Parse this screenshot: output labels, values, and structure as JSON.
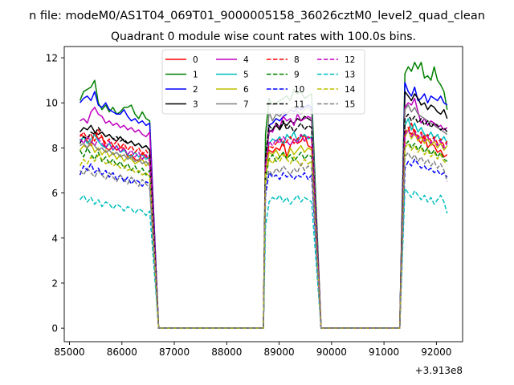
{
  "figure": {
    "suptitle": "n file: modeM0/AS1T04_069T01_9000005158_36026cztM0_level2_quad_clean",
    "title": "Quadrant 0 module wise count rates with 100.0s bins.",
    "x_offset_label": "+3.913e8"
  },
  "chart_data": {
    "type": "line",
    "title": "Quadrant 0 module wise count rates with 100.0s bins.",
    "xlabel": "",
    "ylabel": "",
    "xlim": [
      84900,
      92500
    ],
    "ylim": [
      -0.6,
      12.5
    ],
    "x_offset": 391300000,
    "xticks": [
      85000,
      86000,
      87000,
      88000,
      89000,
      90000,
      91000,
      92000
    ],
    "yticks": [
      0,
      2,
      4,
      6,
      8,
      10,
      12
    ],
    "grid": false,
    "legend": {
      "location": "upper center",
      "columns": 4
    },
    "series": [
      {
        "name": "0",
        "color": "#ff0000",
        "dash": "solid",
        "seg1": [
          8.6,
          8.5,
          8.3,
          8.1,
          8.7,
          8.4,
          8.5,
          8.0,
          7.9,
          8.1,
          7.9,
          8.0,
          8.0,
          7.6,
          7.7,
          7.5,
          7.4,
          7.8,
          7.6,
          7.5
        ],
        "seg2": [
          7.2,
          7.9,
          7.8,
          8.0,
          7.9,
          8.3,
          7.6,
          8.1,
          8.4,
          8.2,
          8.3,
          8.6,
          8.1,
          8.0
        ],
        "seg3": [
          8.5,
          8.8,
          9.1,
          8.6,
          8.4,
          8.2,
          8.6,
          8.0,
          8.2,
          8.1,
          7.8,
          7.9,
          7.6,
          7.7
        ]
      },
      {
        "name": "1",
        "color": "#008000",
        "dash": "solid",
        "seg1": [
          10.1,
          10.5,
          10.6,
          10.7,
          11.0,
          10.0,
          9.7,
          9.9,
          9.6,
          9.8,
          9.5,
          9.6,
          9.8,
          9.8,
          9.9,
          9.5,
          9.3,
          9.6,
          9.3,
          9.2
        ],
        "seg2": [
          8.6,
          10.2,
          9.9,
          10.0,
          10.1,
          10.2,
          10.3,
          10.1,
          10.6,
          10.4,
          10.5,
          10.2,
          10.3,
          10.4
        ],
        "seg3": [
          11.3,
          11.6,
          11.4,
          11.8,
          11.5,
          11.8,
          11.1,
          11.2,
          11.0,
          11.6,
          11.0,
          10.8,
          10.5,
          9.7
        ]
      },
      {
        "name": "2",
        "color": "#0000ff",
        "dash": "solid",
        "seg1": [
          10.0,
          10.2,
          10.3,
          10.1,
          10.5,
          9.9,
          9.8,
          10.0,
          9.7,
          9.6,
          9.5,
          9.5,
          9.7,
          9.4,
          9.2,
          9.3,
          9.1,
          9.2,
          9.0,
          9.1
        ],
        "seg2": [
          7.5,
          9.0,
          9.1,
          9.3,
          9.2,
          9.4,
          9.5,
          9.7,
          9.6,
          9.8,
          9.7,
          9.8,
          9.9,
          9.8
        ],
        "seg3": [
          10.9,
          10.5,
          10.3,
          10.7,
          10.1,
          10.2,
          10.4,
          10.0,
          10.3,
          10.2,
          10.1,
          10.3,
          10.0,
          9.9
        ]
      },
      {
        "name": "3",
        "color": "#000000",
        "dash": "solid",
        "seg1": [
          8.7,
          8.9,
          8.8,
          9.0,
          8.7,
          8.6,
          8.7,
          8.5,
          8.6,
          8.4,
          8.3,
          8.5,
          8.3,
          8.2,
          8.3,
          8.1,
          8.2,
          8.0,
          8.1,
          7.9
        ],
        "seg2": [
          7.4,
          8.7,
          8.8,
          9.0,
          8.8,
          9.1,
          9.0,
          9.2,
          9.1,
          9.3,
          9.2,
          9.4,
          9.3,
          9.2
        ],
        "seg3": [
          10.5,
          10.3,
          10.1,
          10.4,
          10.2,
          9.9,
          10.0,
          9.7,
          9.9,
          9.8,
          9.6,
          9.5,
          9.7,
          9.3
        ]
      },
      {
        "name": "4",
        "color": "#bf00bf",
        "dash": "solid",
        "seg1": [
          9.2,
          9.3,
          9.1,
          9.6,
          9.8,
          9.5,
          9.4,
          9.1,
          9.2,
          9.0,
          9.1,
          8.9,
          9.0,
          8.8,
          8.9,
          8.7,
          8.8,
          8.6,
          8.5,
          8.7
        ],
        "seg2": [
          7.3,
          8.8,
          8.7,
          9.1,
          8.9,
          9.4,
          9.2,
          9.3,
          9.0,
          9.5,
          9.2,
          9.3,
          9.4,
          9.3
        ],
        "seg3": [
          9.8,
          10.0,
          9.9,
          10.2,
          9.6,
          9.1,
          9.3,
          9.0,
          9.2,
          9.1,
          8.9,
          9.0,
          8.8,
          8.9
        ]
      },
      {
        "name": "5",
        "color": "#00bfbf",
        "dash": "solid",
        "seg1": [
          8.3,
          8.5,
          8.2,
          8.4,
          8.6,
          8.3,
          8.1,
          8.0,
          8.2,
          7.9,
          8.1,
          7.8,
          7.9,
          7.7,
          7.6,
          7.8,
          7.6,
          7.7,
          7.5,
          7.6
        ],
        "seg2": [
          7.1,
          8.2,
          8.4,
          8.3,
          8.5,
          8.1,
          8.6,
          8.4,
          8.7,
          8.3,
          8.5,
          8.6,
          8.4,
          8.5
        ],
        "seg3": [
          9.0,
          9.3,
          8.8,
          9.1,
          8.7,
          8.9,
          8.6,
          8.5,
          8.7,
          8.4,
          8.6,
          8.3,
          8.5,
          8.2
        ]
      },
      {
        "name": "6",
        "color": "#bfbf00",
        "dash": "solid",
        "seg1": [
          7.9,
          8.1,
          8.0,
          8.2,
          7.8,
          8.0,
          7.7,
          7.9,
          7.6,
          7.8,
          7.5,
          7.7,
          7.4,
          7.6,
          7.5,
          7.3,
          7.4,
          7.5,
          7.2,
          7.4
        ],
        "seg2": [
          6.9,
          7.8,
          7.7,
          7.9,
          7.6,
          7.8,
          7.5,
          8.0,
          7.7,
          7.9,
          8.1,
          7.8,
          8.0,
          7.9
        ],
        "seg3": [
          8.5,
          8.8,
          8.4,
          8.7,
          8.3,
          8.5,
          8.2,
          8.4,
          8.1,
          8.3,
          8.0,
          8.2,
          7.9,
          8.1
        ]
      },
      {
        "name": "7",
        "color": "#808080",
        "dash": "solid",
        "seg1": [
          8.1,
          8.2,
          8.0,
          8.3,
          8.1,
          7.9,
          8.0,
          7.8,
          7.9,
          7.7,
          7.8,
          7.6,
          7.7,
          7.5,
          7.6,
          7.4,
          7.5,
          7.3,
          7.4,
          7.2
        ],
        "seg2": [
          7.0,
          9.6,
          9.2,
          9.5,
          9.4,
          9.6,
          9.5,
          9.7,
          9.8,
          9.6,
          9.5,
          9.7,
          9.8,
          9.6
        ],
        "seg3": [
          9.7,
          9.9,
          9.6,
          9.8,
          9.5,
          9.4,
          9.3,
          9.2,
          9.1,
          9.0,
          8.9,
          8.8,
          8.7,
          8.6
        ]
      },
      {
        "name": "8",
        "color": "#ff0000",
        "dash": "dashed",
        "seg1": [
          8.5,
          8.7,
          8.4,
          8.6,
          8.3,
          8.8,
          8.5,
          8.2,
          8.4,
          8.1,
          8.3,
          8.0,
          8.2,
          7.9,
          8.1,
          7.8,
          8.0,
          7.7,
          7.9,
          7.6
        ],
        "seg2": [
          7.3,
          8.1,
          8.0,
          8.2,
          8.4,
          8.1,
          8.3,
          8.5,
          8.2,
          8.4,
          8.6,
          8.3,
          8.5,
          8.4
        ],
        "seg3": [
          8.7,
          8.9,
          8.6,
          8.8,
          8.5,
          8.7,
          8.4,
          8.6,
          8.3,
          8.5,
          8.2,
          8.4,
          8.1,
          8.3
        ]
      },
      {
        "name": "9",
        "color": "#008000",
        "dash": "dashed",
        "seg1": [
          7.9,
          7.6,
          8.0,
          7.7,
          7.5,
          7.8,
          7.4,
          7.6,
          7.3,
          7.5,
          7.2,
          7.4,
          7.1,
          7.3,
          7.0,
          7.2,
          6.9,
          7.1,
          6.8,
          7.0
        ],
        "seg2": [
          6.6,
          7.5,
          7.7,
          7.4,
          7.6,
          7.8,
          7.5,
          7.7,
          7.4,
          7.6,
          7.8,
          7.5,
          7.7,
          7.6
        ],
        "seg3": [
          8.1,
          8.3,
          8.0,
          8.2,
          7.9,
          8.1,
          7.8,
          8.0,
          7.7,
          7.9,
          7.6,
          7.8,
          7.5,
          7.4
        ]
      },
      {
        "name": "10",
        "color": "#0000ff",
        "dash": "dashed",
        "seg1": [
          6.8,
          7.2,
          7.0,
          7.3,
          6.9,
          7.1,
          6.8,
          7.0,
          6.7,
          6.9,
          6.6,
          6.8,
          6.5,
          6.7,
          6.4,
          6.6,
          6.5,
          6.3,
          6.5,
          6.4
        ],
        "seg2": [
          5.9,
          6.9,
          6.7,
          6.8,
          6.6,
          6.9,
          6.7,
          6.8,
          6.6,
          6.8,
          6.7,
          6.9,
          6.6,
          6.8
        ],
        "seg3": [
          7.1,
          7.4,
          7.2,
          7.5,
          7.3,
          7.1,
          7.2,
          7.0,
          7.1,
          6.9,
          7.0,
          6.8,
          6.9,
          6.7
        ]
      },
      {
        "name": "11",
        "color": "#000000",
        "dash": "dashed",
        "seg1": [
          8.2,
          8.5,
          8.4,
          8.7,
          8.6,
          8.9,
          8.7,
          8.5,
          8.6,
          8.4,
          8.5,
          8.3,
          8.4,
          8.2,
          8.3,
          8.1,
          8.2,
          8.0,
          8.1,
          7.9
        ],
        "seg2": [
          7.6,
          9.0,
          8.8,
          9.1,
          8.9,
          9.2,
          8.8,
          9.0,
          8.7,
          8.9,
          9.1,
          8.8,
          9.0,
          8.9
        ],
        "seg3": [
          9.3,
          9.5,
          9.2,
          9.4,
          9.1,
          9.3,
          9.0,
          9.2,
          8.9,
          9.1,
          9.0,
          8.8,
          8.9,
          8.7
        ]
      },
      {
        "name": "12",
        "color": "#bf00bf",
        "dash": "dashed",
        "seg1": [
          8.4,
          8.2,
          8.5,
          8.3,
          8.1,
          8.4,
          8.2,
          8.0,
          8.3,
          7.9,
          8.1,
          7.8,
          8.0,
          7.7,
          7.9,
          7.6,
          7.8,
          7.5,
          7.7,
          7.4
        ],
        "seg2": [
          7.2,
          8.3,
          8.1,
          8.4,
          8.2,
          8.5,
          8.3,
          8.1,
          8.4,
          8.2,
          8.6,
          8.3,
          8.5,
          8.4
        ],
        "seg3": [
          8.6,
          8.8,
          8.5,
          8.7,
          8.4,
          8.6,
          8.3,
          8.5,
          8.2,
          8.4,
          8.1,
          8.3,
          8.0,
          8.2
        ]
      },
      {
        "name": "13",
        "color": "#00bfbf",
        "dash": "dashed",
        "seg1": [
          5.7,
          5.9,
          5.6,
          5.8,
          5.5,
          5.7,
          5.4,
          5.6,
          5.5,
          5.3,
          5.5,
          5.4,
          5.2,
          5.4,
          5.3,
          5.1,
          5.3,
          5.2,
          5.0,
          5.2
        ],
        "seg2": [
          4.5,
          5.6,
          5.8,
          5.7,
          5.9,
          5.6,
          5.8,
          5.5,
          5.7,
          5.9,
          5.6,
          5.8,
          5.7,
          5.6
        ],
        "seg3": [
          6.2,
          6.0,
          5.8,
          6.1,
          5.9,
          5.7,
          5.9,
          5.6,
          5.8,
          5.5,
          5.7,
          5.9,
          5.6,
          5.1
        ]
      },
      {
        "name": "14",
        "color": "#bfbf00",
        "dash": "dashed",
        "seg1": [
          7.2,
          7.5,
          7.3,
          7.6,
          7.4,
          7.7,
          7.5,
          7.3,
          7.4,
          7.2,
          7.3,
          7.1,
          7.2,
          7.0,
          7.1,
          6.9,
          7.0,
          6.8,
          6.9,
          6.7
        ],
        "seg2": [
          6.8,
          7.5,
          7.3,
          7.6,
          7.4,
          7.7,
          7.5,
          7.3,
          7.6,
          7.4,
          7.2,
          7.5,
          7.3,
          7.4
        ],
        "seg3": [
          8.0,
          8.2,
          7.9,
          8.1,
          7.8,
          8.0,
          7.7,
          7.9,
          7.6,
          7.8,
          7.5,
          7.7,
          7.4,
          7.3
        ]
      },
      {
        "name": "15",
        "color": "#808080",
        "dash": "dashed",
        "seg1": [
          7.0,
          6.8,
          7.1,
          6.9,
          6.7,
          7.0,
          6.8,
          6.6,
          6.9,
          6.7,
          6.5,
          6.8,
          6.6,
          6.4,
          6.7,
          6.5,
          6.3,
          6.6,
          6.4,
          6.2
        ],
        "seg2": [
          6.3,
          7.0,
          6.8,
          7.1,
          6.9,
          7.2,
          7.0,
          6.8,
          7.1,
          6.9,
          7.3,
          7.0,
          7.2,
          7.1
        ],
        "seg3": [
          7.6,
          7.8,
          7.5,
          7.7,
          7.4,
          7.6,
          7.3,
          7.5,
          7.2,
          7.4,
          7.1,
          7.3,
          7.0,
          6.5
        ]
      }
    ]
  }
}
